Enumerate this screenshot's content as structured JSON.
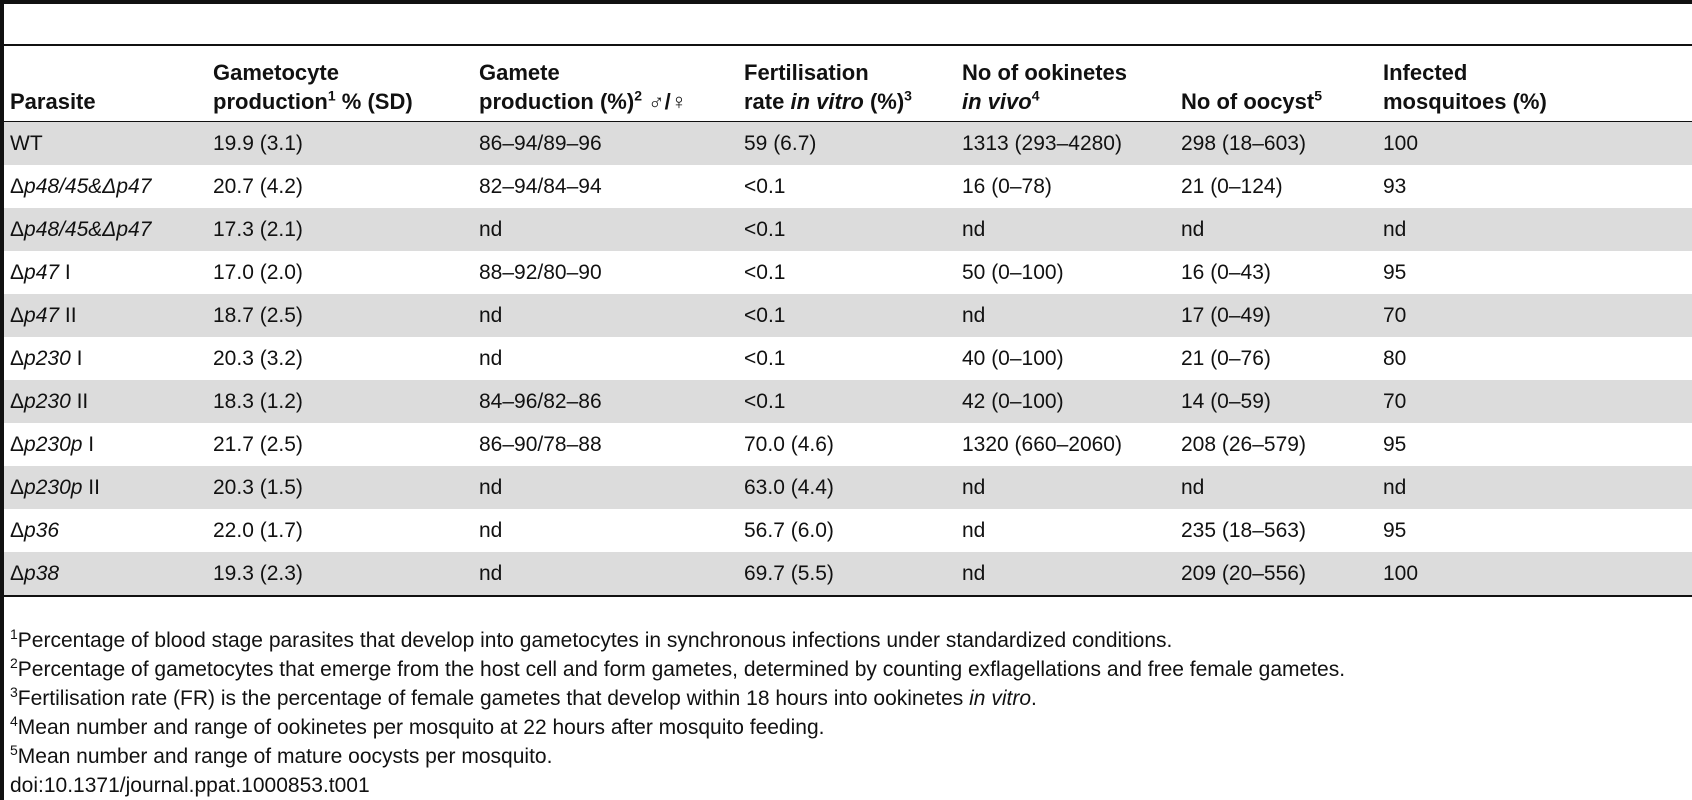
{
  "table": {
    "headers": [
      {
        "text": "Parasite"
      },
      {
        "l1": "Gametocyte",
        "l2": "production",
        "sup": "1",
        "l2b": " % (SD)"
      },
      {
        "l1": "Gamete",
        "l2": "production (%)",
        "sup": "2",
        "l2b": " ♂/♀"
      },
      {
        "l1": "Fertilisation",
        "l2": "rate ",
        "l2i": "in vitro",
        "l2c": " (%)",
        "sup": "3"
      },
      {
        "l1": "No of ookinetes",
        "l2i": "in vivo",
        "sup": "4"
      },
      {
        "text": "No of oocyst",
        "sup": "5"
      },
      {
        "l1": "Infected",
        "l2": "mosquitoes (%)"
      }
    ],
    "rows": [
      {
        "pre": "",
        "ital": "",
        "suffix": "WT",
        "c1": "19.9 (3.1)",
        "c2": "86–94/89–96",
        "c3": "59 (6.7)",
        "c4": "1313 (293–4280)",
        "c5": "298 (18–603)",
        "c6": "100"
      },
      {
        "pre": "Δ",
        "ital": "p48/45&Δp47",
        "suffix": "",
        "c1": "20.7 (4.2)",
        "c2": "82–94/84–94",
        "c3": "<0.1",
        "c4": "16 (0–78)",
        "c5": "21 (0–124)",
        "c6": "93"
      },
      {
        "pre": "Δ",
        "ital": "p48/45&Δp47",
        "suffix": "",
        "c1": "17.3 (2.1)",
        "c2": "nd",
        "c3": "<0.1",
        "c4": "nd",
        "c5": "nd",
        "c6": "nd"
      },
      {
        "pre": "Δ",
        "ital": "p47",
        "suffix": " I",
        "c1": "17.0 (2.0)",
        "c2": "88–92/80–90",
        "c3": "<0.1",
        "c4": "50 (0–100)",
        "c5": "16 (0–43)",
        "c6": "95"
      },
      {
        "pre": "Δ",
        "ital": "p47",
        "suffix": " II",
        "c1": "18.7 (2.5)",
        "c2": "nd",
        "c3": "<0.1",
        "c4": "nd",
        "c5": "17 (0–49)",
        "c6": "70"
      },
      {
        "pre": "Δ",
        "ital": "p230",
        "suffix": " I",
        "c1": "20.3 (3.2)",
        "c2": "nd",
        "c3": "<0.1",
        "c4": "40 (0–100)",
        "c5": "21 (0–76)",
        "c6": "80"
      },
      {
        "pre": "Δ",
        "ital": "p230",
        "suffix": " II",
        "c1": "18.3 (1.2)",
        "c2": "84–96/82–86",
        "c3": "<0.1",
        "c4": "42 (0–100)",
        "c5": "14 (0–59)",
        "c6": "70"
      },
      {
        "pre": "Δ",
        "ital": "p230p",
        "suffix": " I",
        "c1": "21.7 (2.5)",
        "c2": "86–90/78–88",
        "c3": "70.0 (4.6)",
        "c4": "1320 (660–2060)",
        "c5": "208 (26–579)",
        "c6": "95"
      },
      {
        "pre": "Δ",
        "ital": "p230p",
        "suffix": " II",
        "c1": "20.3 (1.5)",
        "c2": "nd",
        "c3": "63.0 (4.4)",
        "c4": "nd",
        "c5": "nd",
        "c6": "nd"
      },
      {
        "pre": "Δ",
        "ital": "p36",
        "suffix": "",
        "c1": "22.0 (1.7)",
        "c2": "nd",
        "c3": "56.7 (6.0)",
        "c4": "nd",
        "c5": "235 (18–563)",
        "c6": "95"
      },
      {
        "pre": "Δ",
        "ital": "p38",
        "suffix": "",
        "c1": "19.3 (2.3)",
        "c2": "nd",
        "c3": "69.7 (5.5)",
        "c4": "nd",
        "c5": "209 (20–556)",
        "c6": "100"
      }
    ]
  },
  "footnotes": [
    {
      "sup": "1",
      "text": "Percentage of blood stage parasites that develop into gametocytes in synchronous infections under standardized conditions.",
      "ital": "",
      "after": ""
    },
    {
      "sup": "2",
      "text": "Percentage of gametocytes that emerge from the host cell and form gametes, determined by counting exflagellations and free female gametes.",
      "ital": "",
      "after": ""
    },
    {
      "sup": "3",
      "text": "Fertilisation rate (FR) is the percentage of female gametes that develop within 18 hours into ookinetes ",
      "ital": "in vitro",
      "after": "."
    },
    {
      "sup": "4",
      "text": "Mean number and range of ookinetes per mosquito at 22 hours after mosquito feeding.",
      "ital": "",
      "after": ""
    },
    {
      "sup": "5",
      "text": "Mean number and range of mature oocysts per mosquito.",
      "ital": "",
      "after": ""
    }
  ],
  "doi": "doi:10.1371/journal.ppat.1000853.t001"
}
